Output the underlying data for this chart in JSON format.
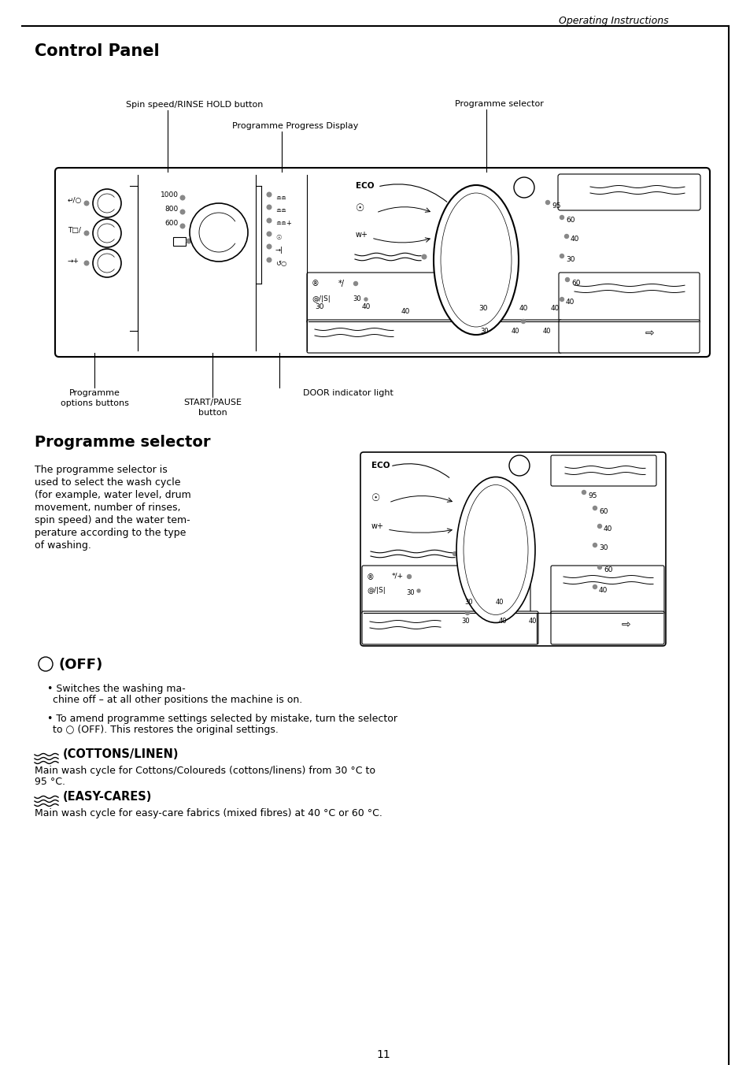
{
  "page_title": "Operating Instructions",
  "section1_title": "Control Panel",
  "section2_title": "Programme selector",
  "label_spin": "Spin speed/RINSE HOLD button",
  "label_prog_selector": "Programme selector",
  "label_prog_display": "Programme Progress Display",
  "label_start_pause": "START/PAUSE",
  "label_button": "button",
  "label_prog_options_l1": "Programme",
  "label_prog_options_l2": "options buttons",
  "label_door": "DOOR indicator light",
  "section2_text_lines": [
    "The programme selector is",
    "used to select the wash cycle",
    "(for example, water level, drum",
    "movement, number of rinses,",
    "spin speed) and the water tem-",
    "perature according to the type",
    "of washing."
  ],
  "off_heading": "(OFF)",
  "off_b1_l1": "Switches the washing ma-",
  "off_b1_l2": "chine off – at all other positions the machine is on.",
  "off_b2_l1": "To amend programme settings selected by mistake, turn the selector",
  "off_b2_l2": "to ○ (OFF). This restores the original settings.",
  "cottons_heading": "(COTTONS/LINEN)",
  "cottons_l1": "Main wash cycle for Cottons/Coloureds (cottons/linens) from 30 °C to",
  "cottons_l2": "95 °C.",
  "easy_heading": "(EASY-CARES)",
  "easy_l1": "Main wash cycle for easy-care fabrics (mixed fibres) at 40 °C or 60 °C.",
  "page_number": "11",
  "bg_color": "#ffffff",
  "text_color": "#000000"
}
